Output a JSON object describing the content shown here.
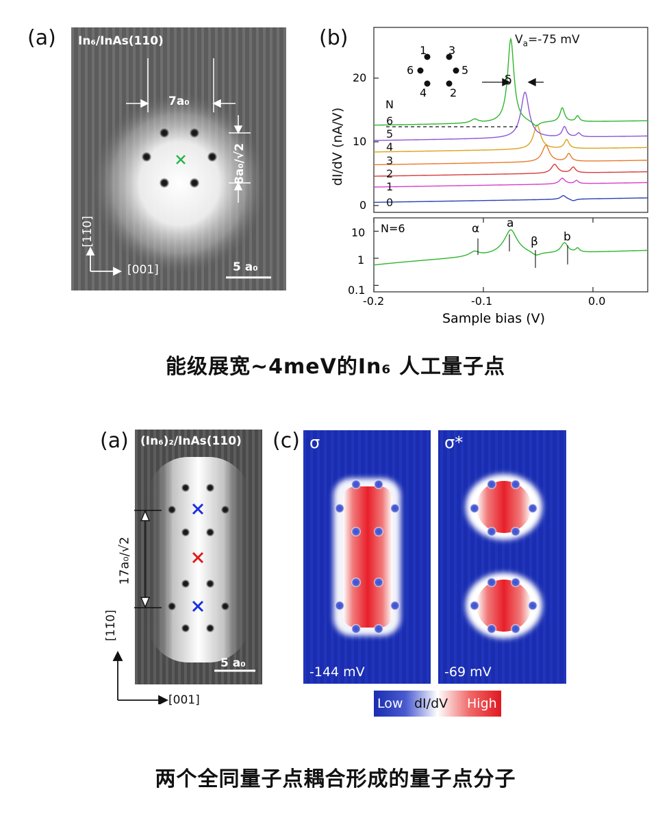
{
  "top": {
    "panel_a": {
      "label": "(a)",
      "title": "In₆/InAs(110)",
      "dim_width": "7a₀",
      "dim_height": "8a₀/√2",
      "axis_vertical": "[11̄0]",
      "axis_horizontal": "[001]",
      "scale_bar": "5 a₀"
    },
    "panel_b": {
      "label": "(b)",
      "voltage_label": "V",
      "voltage_sub": "a",
      "voltage_value": "=-75 mV",
      "delta": "δ",
      "atom_labels": [
        "1",
        "3",
        "6",
        "5",
        "4",
        "2"
      ],
      "n_header": "N",
      "curve_labels": [
        "6",
        "5",
        "4",
        "3",
        "2",
        "1",
        "0"
      ],
      "y_axis_label": "dI/dV (nA/V)",
      "y_ticks": [
        "20",
        "10",
        "0"
      ],
      "lower_n": "N=6",
      "lower_y_ticks": [
        "10",
        "1",
        "0.1"
      ],
      "peak_labels": [
        "α",
        "a",
        "β",
        "b"
      ],
      "x_ticks": [
        "-0.2",
        "-0.1",
        "0.0"
      ],
      "x_axis_label": "Sample bias (V)",
      "curve_colors": [
        "#2db52d",
        "#8a55d6",
        "#d9a21a",
        "#e8792a",
        "#d83a3a",
        "#d63fc7",
        "#2b3fb3"
      ]
    },
    "caption": "能级展宽~4meV的In₆ 人工量子点"
  },
  "bottom": {
    "panel_a": {
      "label": "(a)",
      "title": "(In₆)₂/InAs(110)",
      "dim_label": "17a₀/√2",
      "axis_vertical": "[11̄0]",
      "axis_horizontal": "[001]",
      "scale_bar": "5 a₀"
    },
    "panel_c": {
      "label": "(c)",
      "sigma": "σ",
      "sigma_star": "σ*",
      "bias_left": "-144 mV",
      "bias_right": "-69 mV"
    },
    "colorbar": {
      "low": "Low",
      "mid": "dI/dV",
      "high": "High"
    },
    "caption": "两个全同量子点耦合形成的量子点分子"
  }
}
